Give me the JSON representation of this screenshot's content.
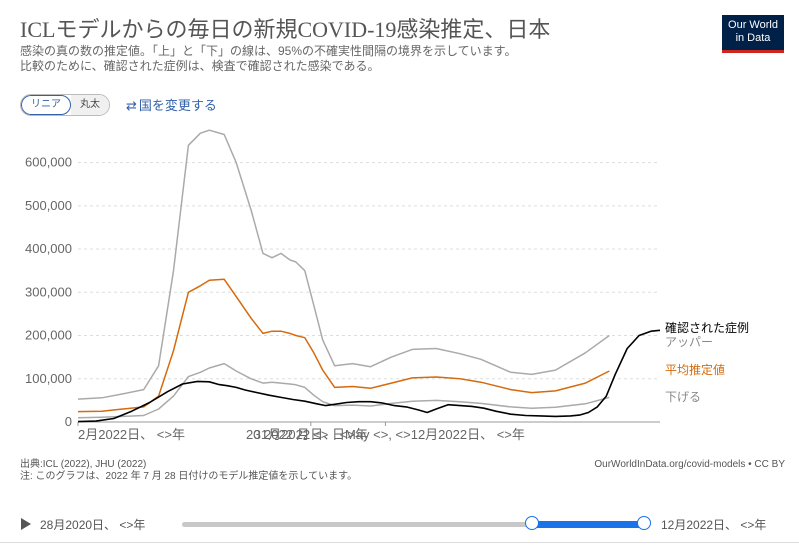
{
  "title": "ICLモデルからの毎日の新規COVID-19感染推定、日本",
  "subtitle_line1": "感染の真の数の推定値。「上」と「下」の線は、95%の不確実性間隔の境界を示しています。",
  "subtitle_line2": "比較のために、確認された症例は、検査で確認された感染である。",
  "logo": {
    "line1": "Our World",
    "line2": "in Data"
  },
  "controls": {
    "scale_linear": "リニア",
    "scale_log": "丸太",
    "change_country": "国を変更する",
    "change_country_icon": "swap-arrows-icon"
  },
  "footer": {
    "source": "出典:ICL (2022), JHU (2022)",
    "note": "注: このグラフは、2022 年 7 月 28 日付けのモデル推定値を示しています。",
    "url": "OurWorldInData.org/covid-models • CC BY"
  },
  "timeline": {
    "start_label": "28月2020日、 <>年",
    "end_label": "12月2022日、 <>年",
    "play_icon": "play-icon"
  },
  "chart_data": {
    "type": "line",
    "ylim": [
      0,
      680000
    ],
    "yticks": [
      0,
      100000,
      200000,
      300000,
      400000,
      500000,
      600000
    ],
    "ytick_labels": [
      "0",
      "100,000",
      "200,000",
      "300,000",
      "400,000",
      "500,000",
      "600,000"
    ],
    "xlim": [
      0,
      195
    ],
    "xtick_labels": [
      {
        "x": 0,
        "label": "2月2022日、 <>年"
      },
      {
        "x": 78,
        "label": "31月2022日、 <>年"
      },
      {
        "x": 103,
        "label": "20 2022 月 <> 日May <>, <>12月2022日、 <>年"
      }
    ],
    "colors": {
      "upper": "#aaaaaa",
      "mean": "#d66a0c",
      "lower": "#aaaaaa",
      "confirmed": "#000000"
    },
    "series": [
      {
        "key": "upper",
        "name": "アッパー",
        "x": [
          0,
          8,
          15,
          22,
          27,
          32,
          37,
          41,
          44,
          49,
          53,
          58,
          62,
          65,
          68,
          71,
          73,
          76,
          79,
          82,
          86,
          92,
          98,
          105,
          112,
          120,
          128,
          135,
          145,
          152,
          160,
          170,
          178
        ],
        "y": [
          53000,
          56000,
          65000,
          75000,
          130000,
          350000,
          640000,
          668000,
          675000,
          665000,
          600000,
          490000,
          390000,
          380000,
          390000,
          375000,
          370000,
          350000,
          270000,
          190000,
          130000,
          135000,
          128000,
          150000,
          168000,
          170000,
          158000,
          145000,
          115000,
          110000,
          120000,
          160000,
          200000
        ]
      },
      {
        "key": "mean",
        "name": "平均推定値",
        "x": [
          0,
          8,
          15,
          22,
          27,
          32,
          37,
          41,
          44,
          49,
          53,
          58,
          62,
          65,
          68,
          71,
          73,
          76,
          79,
          82,
          86,
          92,
          98,
          105,
          112,
          120,
          128,
          135,
          145,
          152,
          160,
          170,
          178
        ],
        "y": [
          24000,
          25000,
          30000,
          35000,
          60000,
          165000,
          300000,
          315000,
          328000,
          330000,
          290000,
          240000,
          205000,
          210000,
          210000,
          205000,
          200000,
          195000,
          160000,
          120000,
          80000,
          82000,
          78000,
          90000,
          102000,
          104000,
          100000,
          92000,
          75000,
          68000,
          72000,
          90000,
          118000
        ]
      },
      {
        "key": "lower",
        "name": "下げる",
        "x": [
          0,
          8,
          15,
          22,
          27,
          32,
          37,
          41,
          44,
          49,
          53,
          58,
          62,
          65,
          68,
          71,
          73,
          76,
          79,
          82,
          86,
          92,
          98,
          105,
          112,
          120,
          128,
          135,
          145,
          152,
          160,
          170,
          178
        ],
        "y": [
          10000,
          11000,
          13000,
          15000,
          30000,
          60000,
          105000,
          115000,
          125000,
          135000,
          118000,
          100000,
          90000,
          92000,
          90000,
          88000,
          86000,
          80000,
          62000,
          47000,
          38000,
          39000,
          37000,
          43000,
          48000,
          50000,
          47000,
          43000,
          35000,
          32000,
          34000,
          42000,
          57000
        ]
      },
      {
        "key": "confirmed",
        "name": "確認された症例",
        "x": [
          0,
          6,
          12,
          18,
          24,
          30,
          35,
          40,
          44,
          47,
          50,
          53,
          56,
          60,
          64,
          68,
          72,
          76,
          80,
          83,
          86,
          90,
          94,
          98,
          102,
          106,
          110,
          114,
          117,
          120,
          124,
          128,
          132,
          136,
          140,
          145,
          150,
          155,
          160,
          165,
          168,
          171,
          174,
          177,
          180,
          184,
          188,
          192,
          195
        ],
        "y": [
          1000,
          2000,
          8000,
          25000,
          45000,
          70000,
          88000,
          94000,
          93000,
          87000,
          84000,
          80000,
          74000,
          68000,
          62000,
          57000,
          52000,
          48000,
          42000,
          38000,
          41000,
          45000,
          47000,
          47000,
          44000,
          38000,
          35000,
          28000,
          22000,
          30000,
          40000,
          38000,
          36000,
          32000,
          25000,
          18000,
          15000,
          14000,
          13000,
          14000,
          16000,
          22000,
          35000,
          60000,
          110000,
          170000,
          200000,
          210000,
          212000
        ]
      }
    ]
  }
}
